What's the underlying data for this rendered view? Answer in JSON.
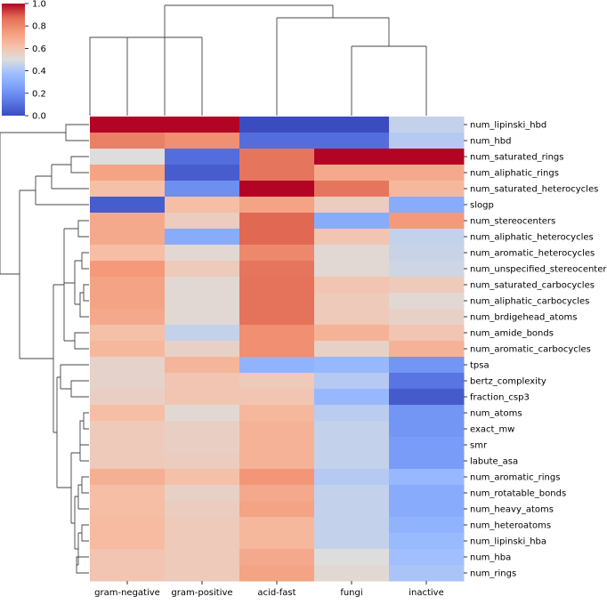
{
  "chart_data": {
    "type": "heatmap",
    "title": "",
    "xlabel": "",
    "ylabel": "",
    "columns": [
      "gram-negative",
      "gram-positive",
      "acid-fast",
      "fungi",
      "inactive"
    ],
    "rows": [
      "num_lipinski_hbd",
      "num_hbd",
      "num_saturated_rings",
      "num_aliphatic_rings",
      "num_saturated_heterocycles",
      "slogp",
      "num_stereocenters",
      "num_aliphatic_heterocycles",
      "num_aromatic_heterocycles",
      "num_unspecified_stereocenters",
      "num_saturated_carbocycles",
      "num_aliphatic_carbocycles",
      "num_brdigehead_atoms",
      "num_amide_bonds",
      "num_aromatic_carbocycles",
      "tpsa",
      "bertz_complexity",
      "fraction_csp3",
      "num_atoms",
      "exact_mw",
      "smr",
      "labute_asa",
      "num_aromatic_rings",
      "num_rotatable_bonds",
      "num_heavy_atoms",
      "num_heteroatoms",
      "num_lipinski_hba",
      "num_hba",
      "num_rings"
    ],
    "values": [
      [
        1.0,
        1.0,
        0.0,
        0.0,
        0.45
      ],
      [
        0.82,
        0.78,
        0.1,
        0.1,
        0.42
      ],
      [
        0.5,
        0.1,
        0.85,
        1.0,
        1.0
      ],
      [
        0.72,
        0.05,
        0.85,
        0.7,
        0.7
      ],
      [
        0.62,
        0.2,
        1.0,
        0.85,
        0.65
      ],
      [
        0.05,
        0.63,
        0.72,
        0.57,
        0.3
      ],
      [
        0.7,
        0.57,
        0.88,
        0.3,
        0.75
      ],
      [
        0.7,
        0.3,
        0.88,
        0.6,
        0.45
      ],
      [
        0.63,
        0.52,
        0.8,
        0.52,
        0.46
      ],
      [
        0.75,
        0.58,
        0.85,
        0.52,
        0.47
      ],
      [
        0.72,
        0.52,
        0.86,
        0.6,
        0.58
      ],
      [
        0.72,
        0.52,
        0.86,
        0.58,
        0.52
      ],
      [
        0.7,
        0.52,
        0.86,
        0.58,
        0.55
      ],
      [
        0.62,
        0.45,
        0.78,
        0.67,
        0.6
      ],
      [
        0.65,
        0.55,
        0.78,
        0.55,
        0.67
      ],
      [
        0.54,
        0.66,
        0.33,
        0.35,
        0.22
      ],
      [
        0.54,
        0.6,
        0.58,
        0.42,
        0.12
      ],
      [
        0.56,
        0.6,
        0.6,
        0.35,
        0.04
      ],
      [
        0.63,
        0.52,
        0.65,
        0.43,
        0.22
      ],
      [
        0.58,
        0.56,
        0.67,
        0.45,
        0.22
      ],
      [
        0.58,
        0.56,
        0.67,
        0.45,
        0.24
      ],
      [
        0.58,
        0.57,
        0.67,
        0.45,
        0.24
      ],
      [
        0.68,
        0.62,
        0.76,
        0.42,
        0.35
      ],
      [
        0.63,
        0.55,
        0.7,
        0.45,
        0.3
      ],
      [
        0.63,
        0.57,
        0.72,
        0.45,
        0.3
      ],
      [
        0.64,
        0.58,
        0.65,
        0.45,
        0.33
      ],
      [
        0.64,
        0.58,
        0.65,
        0.45,
        0.36
      ],
      [
        0.6,
        0.58,
        0.7,
        0.5,
        0.38
      ],
      [
        0.6,
        0.58,
        0.72,
        0.52,
        0.4
      ]
    ],
    "colorbar": {
      "min": 0.0,
      "max": 1.0,
      "ticks": [
        "0.0",
        "0.2",
        "0.4",
        "0.6",
        "0.8",
        "1.0"
      ],
      "colormap": "coolwarm"
    },
    "dendrograms": {
      "columns": "hierarchical clustering tree above columns",
      "rows": "hierarchical clustering tree left of rows"
    }
  }
}
